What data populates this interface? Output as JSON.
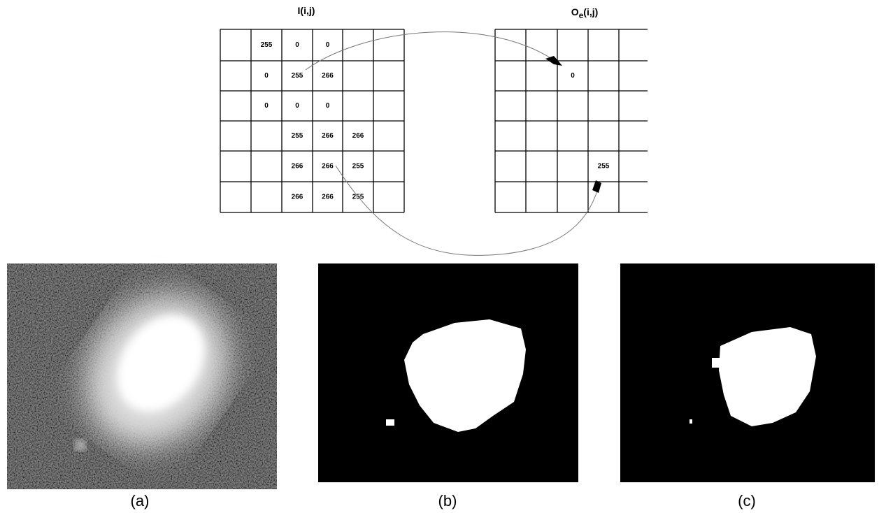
{
  "input_grid": {
    "title": "I(i,j)",
    "cells": [
      [
        null,
        "255",
        "0",
        "0",
        null,
        null
      ],
      [
        null,
        "0",
        "255",
        "266",
        null,
        null
      ],
      [
        null,
        "0",
        "0",
        "0",
        null,
        null
      ],
      [
        null,
        null,
        "255",
        "266",
        "266",
        null
      ],
      [
        null,
        null,
        "266",
        "266",
        "255",
        null
      ],
      [
        null,
        null,
        "266",
        "266",
        "255",
        null
      ]
    ]
  },
  "output_grid": {
    "title": {
      "main": "O",
      "subscript": "e",
      "suffix": "(i,j)"
    },
    "cells": [
      [
        null,
        null,
        null,
        null,
        null
      ],
      [
        null,
        null,
        "0",
        null,
        null
      ],
      [
        null,
        null,
        null,
        null,
        null
      ],
      [
        null,
        null,
        null,
        null,
        null
      ],
      [
        null,
        null,
        null,
        "255",
        null
      ],
      [
        null,
        null,
        null,
        null,
        null
      ]
    ]
  },
  "images": [
    {
      "caption": "(a)"
    },
    {
      "caption": "(b)"
    },
    {
      "caption": "(c)"
    }
  ]
}
